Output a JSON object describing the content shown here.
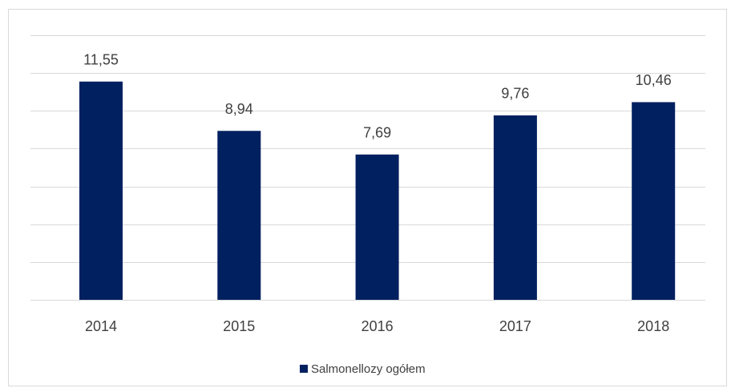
{
  "chart_data": {
    "type": "bar",
    "categories": [
      "2014",
      "2015",
      "2016",
      "2017",
      "2018"
    ],
    "series": [
      {
        "name": "Salmonellozy ogółem",
        "color": "#002060",
        "values": [
          11.55,
          8.94,
          7.69,
          9.76,
          10.46
        ],
        "value_labels": [
          "11,55",
          "8,94",
          "7,69",
          "9,76",
          "10,46"
        ]
      }
    ],
    "ylim": [
      0,
      14
    ],
    "yticks": [
      0,
      2,
      4,
      6,
      8,
      10,
      12,
      14
    ],
    "grid": true,
    "legend": "bottom"
  }
}
